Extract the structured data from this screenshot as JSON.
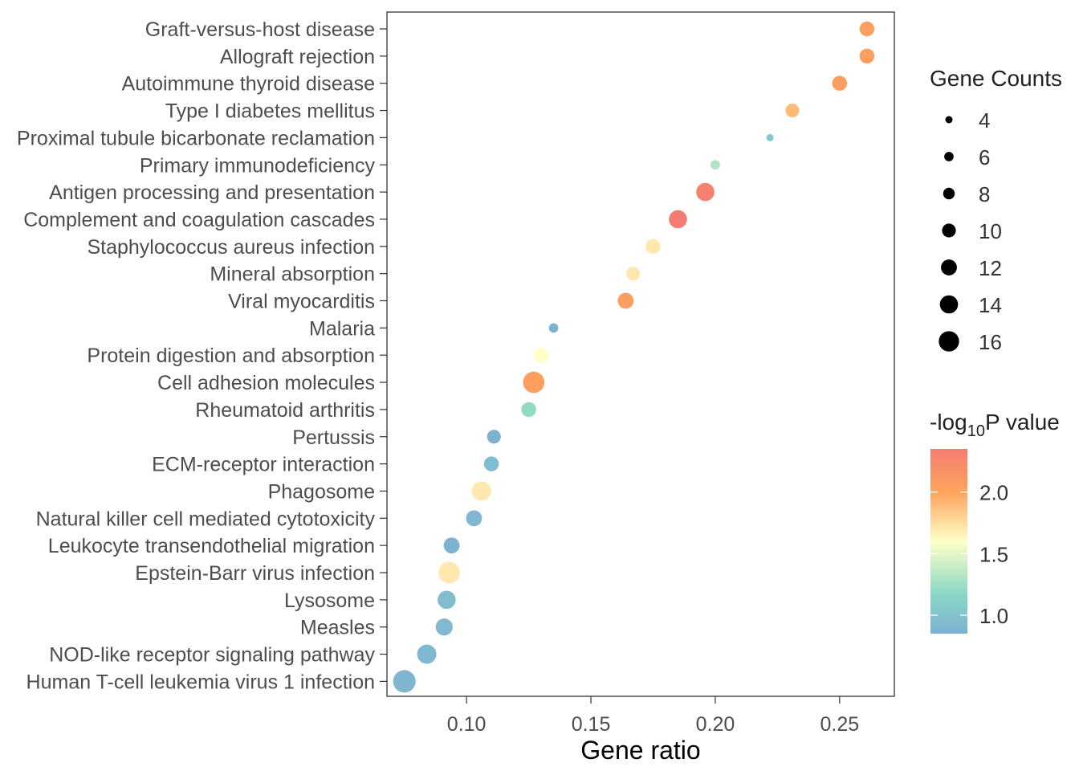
{
  "chart_data": {
    "type": "scatter",
    "xlabel": "Gene ratio",
    "ylabel": "",
    "xlim": [
      0.068,
      0.272
    ],
    "xticks": [
      "0.10",
      "0.15",
      "0.20",
      "0.25"
    ],
    "xtick_values": [
      0.1,
      0.15,
      0.2,
      0.25
    ],
    "grid": false,
    "points": [
      {
        "term": "Graft-versus-host disease",
        "gene_ratio": 0.261,
        "count": 11,
        "neg_log10_p": 2.05
      },
      {
        "term": "Allograft rejection",
        "gene_ratio": 0.261,
        "count": 11,
        "neg_log10_p": 2.05
      },
      {
        "term": "Autoimmune thyroid disease",
        "gene_ratio": 0.25,
        "count": 11,
        "neg_log10_p": 2.05
      },
      {
        "term": "Type I diabetes mellitus",
        "gene_ratio": 0.231,
        "count": 10,
        "neg_log10_p": 1.9
      },
      {
        "term": "Proximal tubule bicarbonate reclamation",
        "gene_ratio": 0.222,
        "count": 4,
        "neg_log10_p": 1.05
      },
      {
        "term": "Primary immunodeficiency",
        "gene_ratio": 0.2,
        "count": 6,
        "neg_log10_p": 1.3
      },
      {
        "term": "Antigen processing and presentation",
        "gene_ratio": 0.196,
        "count": 14,
        "neg_log10_p": 2.3
      },
      {
        "term": "Complement and coagulation cascades",
        "gene_ratio": 0.185,
        "count": 14,
        "neg_log10_p": 2.35
      },
      {
        "term": "Staphylococcus aureus infection",
        "gene_ratio": 0.175,
        "count": 11,
        "neg_log10_p": 1.7
      },
      {
        "term": "Mineral absorption",
        "gene_ratio": 0.167,
        "count": 10,
        "neg_log10_p": 1.7
      },
      {
        "term": "Viral myocarditis",
        "gene_ratio": 0.164,
        "count": 12,
        "neg_log10_p": 2.05
      },
      {
        "term": "Malaria",
        "gene_ratio": 0.135,
        "count": 6,
        "neg_log10_p": 0.85
      },
      {
        "term": "Protein digestion and absorption",
        "gene_ratio": 0.13,
        "count": 11,
        "neg_log10_p": 1.6
      },
      {
        "term": "Cell adhesion molecules",
        "gene_ratio": 0.127,
        "count": 17,
        "neg_log10_p": 2.05
      },
      {
        "term": "Rheumatoid arthritis",
        "gene_ratio": 0.125,
        "count": 11,
        "neg_log10_p": 1.2
      },
      {
        "term": "Pertussis",
        "gene_ratio": 0.111,
        "count": 10,
        "neg_log10_p": 0.85
      },
      {
        "term": "ECM-receptor interaction",
        "gene_ratio": 0.11,
        "count": 11,
        "neg_log10_p": 0.95
      },
      {
        "term": "Phagosome",
        "gene_ratio": 0.106,
        "count": 15,
        "neg_log10_p": 1.7
      },
      {
        "term": "Natural killer cell mediated cytotoxicity",
        "gene_ratio": 0.103,
        "count": 12,
        "neg_log10_p": 0.9
      },
      {
        "term": "Leukocyte transendothelial migration",
        "gene_ratio": 0.094,
        "count": 12,
        "neg_log10_p": 0.85
      },
      {
        "term": "Epstein-Barr virus infection",
        "gene_ratio": 0.093,
        "count": 17,
        "neg_log10_p": 1.7
      },
      {
        "term": "Lysosome",
        "gene_ratio": 0.092,
        "count": 14,
        "neg_log10_p": 0.95
      },
      {
        "term": "Measles",
        "gene_ratio": 0.091,
        "count": 13,
        "neg_log10_p": 0.92
      },
      {
        "term": "NOD-like receptor signaling pathway",
        "gene_ratio": 0.084,
        "count": 15,
        "neg_log10_p": 0.9
      },
      {
        "term": "Human T-cell leukemia virus 1 infection",
        "gene_ratio": 0.075,
        "count": 18,
        "neg_log10_p": 0.88
      }
    ],
    "size_legend": {
      "title": "Gene Counts",
      "breaks": [
        4,
        6,
        8,
        10,
        12,
        14,
        16
      ]
    },
    "color_legend": {
      "title_prefix": "-log",
      "title_sub": "10",
      "title_suffix": "P value",
      "range": [
        0.85,
        2.35
      ],
      "breaks": [
        "1.0",
        "1.5",
        "2.0"
      ],
      "break_values": [
        1.0,
        1.5,
        2.0
      ],
      "color_stops": [
        {
          "value": 0.85,
          "color": "#7fb1d3"
        },
        {
          "value": 1.15,
          "color": "#86d5c5"
        },
        {
          "value": 1.6,
          "color": "#ffffc8"
        },
        {
          "value": 2.0,
          "color": "#fda45c"
        },
        {
          "value": 2.35,
          "color": "#f47c72"
        }
      ]
    }
  }
}
